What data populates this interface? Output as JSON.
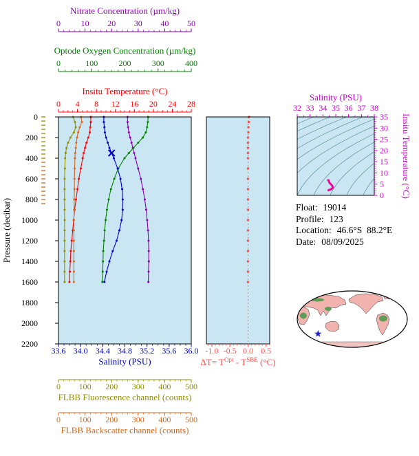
{
  "figure": {
    "bg": "#ffffff",
    "panel_bg": "#c9e6f2"
  },
  "info": {
    "lines": [
      {
        "label": "Float:",
        "value": "19014"
      },
      {
        "label": "Profile:",
        "value": "123"
      },
      {
        "label": "Location:",
        "value": "46.6°S  88.2°E"
      },
      {
        "label": "Date:",
        "value": "08/09/2025"
      }
    ]
  },
  "chart_data": [
    {
      "id": "profiles",
      "type": "line",
      "ylabel": "Pressure (decibar)",
      "ylim": [
        0,
        2200
      ],
      "yticks": [
        "0",
        "200",
        "400",
        "600",
        "800",
        "1000",
        "1200",
        "1400",
        "1600",
        "1800",
        "2000",
        "2200"
      ],
      "pressure": [
        0,
        50,
        100,
        150,
        200,
        250,
        300,
        350,
        400,
        500,
        600,
        700,
        800,
        900,
        1000,
        1100,
        1200,
        1300,
        1400,
        1500,
        1600
      ],
      "series": [
        {
          "key": "nitrate",
          "name": "Nitrate Concentration (µm/kg)",
          "color": "#8b00b4",
          "position": "top3",
          "xlim": [
            0,
            50
          ],
          "xticks": [
            "0",
            "10",
            "20",
            "30",
            "40",
            "50"
          ],
          "minor": 2,
          "values": [
            26,
            26,
            26.2,
            26.5,
            27,
            27.5,
            28,
            28.5,
            29,
            30,
            31,
            31.8,
            32.5,
            33,
            33.4,
            33.7,
            33.9,
            34,
            34,
            33.9,
            33.8
          ]
        },
        {
          "key": "oxygen",
          "name": "Optode Oxygen Concentration (µm/kg)",
          "color": "#008000",
          "position": "top2",
          "xlim": [
            0,
            400
          ],
          "xticks": [
            "0",
            "100",
            "200",
            "300",
            "400"
          ],
          "minor": 20,
          "values": [
            270,
            269,
            267,
            263,
            254,
            240,
            226,
            212,
            199,
            180,
            168,
            158,
            151,
            146,
            142,
            139,
            137,
            135,
            134,
            133,
            132
          ]
        },
        {
          "key": "temperature",
          "name": "Insitu Temperature (°C)",
          "color": "#ff0000",
          "position": "top1",
          "xlim": [
            0,
            28
          ],
          "xticks": [
            "0",
            "4",
            "8",
            "12",
            "16",
            "20",
            "24",
            "28"
          ],
          "minor": 1,
          "values": [
            6.8,
            6.8,
            6.7,
            6.6,
            6.3,
            5.9,
            5.6,
            5.3,
            5.1,
            4.7,
            4.3,
            4.0,
            3.7,
            3.4,
            3.2,
            3.0,
            2.8,
            2.6,
            2.5,
            2.4,
            2.3
          ]
        },
        {
          "key": "salinity",
          "name": "Salinity (PSU)",
          "color": "#0000cc",
          "position": "bottom1",
          "xlim": [
            33.6,
            36.0
          ],
          "xticks": [
            "33.6",
            "34.0",
            "34.4",
            "34.8",
            "35.2",
            "35.6",
            "36.0"
          ],
          "minor": 0.1,
          "values": [
            34.42,
            34.42,
            34.43,
            34.44,
            34.46,
            34.49,
            34.52,
            34.56,
            34.6,
            34.67,
            34.72,
            34.75,
            34.76,
            34.76,
            34.74,
            34.7,
            34.65,
            34.58,
            34.52,
            34.47,
            34.43
          ],
          "x_marker": {
            "pressure": 350,
            "value": 34.56,
            "color": "#0000cc"
          }
        },
        {
          "key": "fluorescence",
          "name": "FLBB Fluorescence channel (counts)",
          "color": "#8f8f00",
          "position": "bottom2",
          "xlim": [
            0,
            500
          ],
          "xticks": [
            "0",
            "100",
            "200",
            "300",
            "400",
            "500"
          ],
          "minor": 20,
          "values": [
            55,
            62,
            65,
            58,
            45,
            36,
            30,
            27,
            25,
            24,
            23,
            23,
            23,
            23,
            23,
            23,
            23,
            23,
            23,
            23,
            23
          ]
        },
        {
          "key": "backscatter",
          "name": "FLBB Backscatter channel (counts)",
          "color": "#d2691e",
          "position": "bottom3",
          "xlim": [
            0,
            500
          ],
          "xticks": [
            "0",
            "100",
            "200",
            "300",
            "400",
            "500"
          ],
          "minor": 20,
          "values": [
            85,
            88,
            80,
            74,
            70,
            67,
            65,
            63,
            62,
            61,
            60,
            60,
            59,
            59,
            58,
            58,
            58,
            58,
            58,
            58,
            58
          ]
        }
      ],
      "margin_marks": [
        {
          "color": "#8f8f00",
          "from_db": 0,
          "to_db": 420
        },
        {
          "color": "#d2691e",
          "from_db": 440,
          "to_db": 840
        }
      ]
    },
    {
      "id": "delta_t",
      "type": "scatter",
      "xlabel_parts": {
        "pre": "ΔT= T",
        "sup1": "Opt",
        "mid": " - T",
        "sup2": "SBE",
        "post": " (°C)"
      },
      "xlim": [
        -1.15,
        0.6
      ],
      "xticks": [
        "-1.0",
        "-0.5",
        "0.0",
        "0.5"
      ],
      "minor": 0.1,
      "color": "#ff4d4d",
      "zero_line": true,
      "pressure": [
        0,
        50,
        100,
        150,
        200,
        250,
        300,
        350,
        400,
        500,
        600,
        700,
        800,
        900,
        1000,
        1100,
        1200,
        1300,
        1400,
        1500,
        1600
      ],
      "values": [
        0.03,
        0.02,
        0.01,
        0.01,
        0,
        0,
        0,
        0,
        0,
        0,
        0,
        0,
        0,
        0,
        0,
        0,
        0,
        0,
        0,
        0,
        0
      ]
    },
    {
      "id": "ts_diagram",
      "type": "line",
      "title": "Salinity (PSU)",
      "right_ylabel": "Insitu Temperature (°C)",
      "xlim": [
        32,
        38
      ],
      "xticks": [
        "32",
        "33",
        "34",
        "35",
        "36",
        "37",
        "38"
      ],
      "ylim": [
        0,
        35
      ],
      "yticks": [
        "0",
        "5",
        "10",
        "15",
        "20",
        "25",
        "30",
        "35"
      ],
      "axis_color": "#cc00cc",
      "curve_color": "#ee0099",
      "contour_color": "#336b7d",
      "contours": [
        17,
        18,
        19,
        20,
        21,
        22,
        23,
        24,
        25,
        26,
        27,
        28
      ],
      "salinity": [
        34.42,
        34.42,
        34.43,
        34.44,
        34.46,
        34.49,
        34.52,
        34.56,
        34.6,
        34.67,
        34.72,
        34.75,
        34.76,
        34.76,
        34.74,
        34.7,
        34.65,
        34.58,
        34.52,
        34.47,
        34.43
      ],
      "temperature": [
        6.8,
        6.8,
        6.7,
        6.6,
        6.3,
        5.9,
        5.6,
        5.3,
        5.1,
        4.7,
        4.3,
        4.0,
        3.7,
        3.4,
        3.2,
        3.0,
        2.8,
        2.6,
        2.5,
        2.4,
        2.3
      ]
    }
  ],
  "map": {
    "ocean": "#ffffff",
    "land": "#f2b2ae",
    "vegetation": "#4c9a4c",
    "antarctica": "#f2c4c0",
    "outline": "#000000",
    "star_color": "#2222cc"
  }
}
